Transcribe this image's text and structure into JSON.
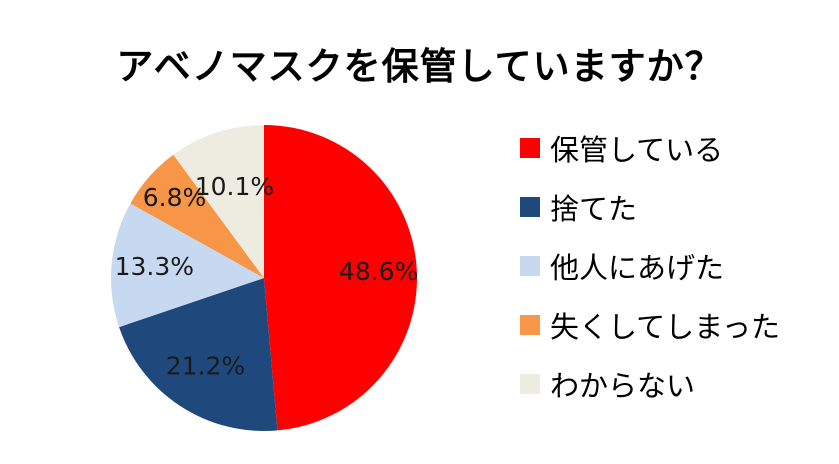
{
  "chart_data": {
    "type": "pie",
    "title": "アベノマスクを保管していますか？",
    "legend_position": "right",
    "slices": [
      {
        "label": "保管している",
        "value": 48.6,
        "value_label": "48.6%",
        "color": "#ff0000"
      },
      {
        "label": "捨てた",
        "value": 21.2,
        "value_label": "21.2%",
        "color": "#1f497d"
      },
      {
        "label": "他人にあげた",
        "value": 13.3,
        "value_label": "13.3%",
        "color": "#c6d9f1"
      },
      {
        "label": "失くしてしまった",
        "value": 6.8,
        "value_label": "6.8%",
        "color": "#f79646"
      },
      {
        "label": "わからない",
        "value": 10.1,
        "value_label": "10.1%",
        "color": "#eeece1"
      }
    ]
  }
}
